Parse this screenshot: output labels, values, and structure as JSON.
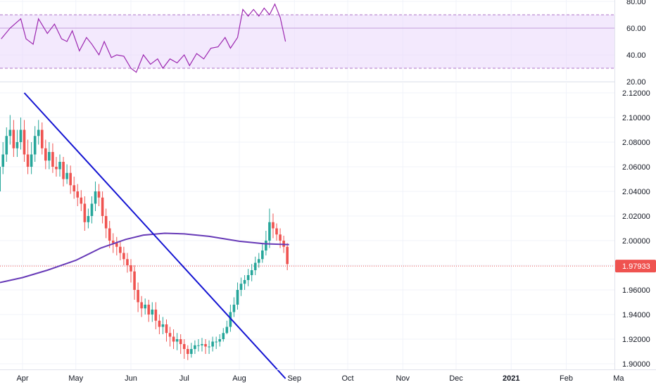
{
  "chart_data": [
    {
      "type": "line",
      "title": "",
      "ylim": [
        20,
        80
      ],
      "grid": true,
      "bands": {
        "upper": 70,
        "middle": 60,
        "lower": 30,
        "fill": "#e9d7fc",
        "line_color": "#7b1fa2"
      },
      "y_ticks": [
        "80.00",
        "60.00",
        "40.00",
        "20.00"
      ],
      "y_tick_values": [
        80,
        60,
        40,
        20
      ],
      "series": [
        {
          "color": "#9c27b0",
          "x": [
            "2020-03-20",
            "2020-03-25",
            "2020-03-31",
            "2020-04-03",
            "2020-04-07",
            "2020-04-10",
            "2020-04-15",
            "2020-04-19",
            "2020-04-23",
            "2020-04-26",
            "2020-04-29",
            "2020-05-03",
            "2020-05-07",
            "2020-05-10",
            "2020-05-14",
            "2020-05-17",
            "2020-05-21",
            "2020-05-24",
            "2020-05-28",
            "2020-06-01",
            "2020-06-04",
            "2020-06-08",
            "2020-06-12",
            "2020-06-16",
            "2020-06-19",
            "2020-06-23",
            "2020-06-27",
            "2020-07-01",
            "2020-07-04",
            "2020-07-08",
            "2020-07-12",
            "2020-07-16",
            "2020-07-20",
            "2020-07-24",
            "2020-07-27",
            "2020-07-31",
            "2020-08-03",
            "2020-08-06",
            "2020-08-09",
            "2020-08-12",
            "2020-08-15",
            "2020-08-18",
            "2020-08-21",
            "2020-08-24",
            "2020-08-27"
          ],
          "values": [
            52,
            60,
            67,
            52,
            48,
            67,
            56,
            63,
            52,
            50,
            58,
            43,
            53,
            48,
            40,
            50,
            38,
            40,
            39,
            30,
            27,
            40,
            33,
            37,
            30,
            37,
            34,
            40,
            32,
            41,
            37,
            45,
            46,
            53,
            45,
            53,
            74,
            69,
            74,
            69,
            75,
            70,
            78,
            68,
            50
          ]
        }
      ]
    },
    {
      "type": "candlestick",
      "title": "",
      "ylim": [
        1.885,
        2.125
      ],
      "grid": true,
      "y_ticks": [
        "2.12000",
        "2.10000",
        "2.08000",
        "2.06000",
        "2.04000",
        "2.02000",
        "2.00000",
        "1.98000",
        "1.96000",
        "1.94000",
        "1.92000",
        "1.90000"
      ],
      "y_tick_values": [
        2.12,
        2.1,
        2.08,
        2.06,
        2.04,
        2.02,
        2.0,
        1.98,
        1.96,
        1.94,
        1.92,
        1.9
      ],
      "x_ticks": [
        "Apr",
        "May",
        "Jun",
        "Jul",
        "Aug",
        "Sep",
        "Oct",
        "Nov",
        "Dec",
        "2021",
        "Feb",
        "Ma"
      ],
      "x_tick_dates": [
        "2020-04-01",
        "2020-05-01",
        "2020-06-01",
        "2020-07-01",
        "2020-08-01",
        "2020-09-01",
        "2020-10-01",
        "2020-11-01",
        "2020-12-01",
        "2021-01-01",
        "2021-02-01",
        "2021-03-01"
      ],
      "last_price": "1.97933",
      "last_price_value": 1.97933,
      "colors": {
        "up": "#26a69a",
        "down": "#ef5350",
        "ma": "#673ab7",
        "trendline": "#1414d2",
        "last_price": "#ef5350"
      },
      "moving_average": {
        "x": [
          "2020-03-15",
          "2020-04-01",
          "2020-04-15",
          "2020-05-01",
          "2020-05-15",
          "2020-05-29",
          "2020-06-08",
          "2020-06-20",
          "2020-07-01",
          "2020-07-15",
          "2020-08-01",
          "2020-08-15",
          "2020-08-29"
        ],
        "values": [
          1.966,
          1.97,
          1.976,
          1.984,
          1.994,
          2.001,
          2.0045,
          2.006,
          2.0055,
          2.0035,
          1.9995,
          1.9975,
          1.9968
        ]
      },
      "trendline": {
        "x": [
          "2020-04-02",
          "2020-08-27"
        ],
        "values": [
          2.12,
          1.888
        ]
      },
      "candles": {
        "x": [
          "2020-03-15",
          "2020-03-17",
          "2020-03-19",
          "2020-03-21",
          "2020-03-23",
          "2020-03-25",
          "2020-03-27",
          "2020-03-29",
          "2020-03-31",
          "2020-04-02",
          "2020-04-04",
          "2020-04-06",
          "2020-04-08",
          "2020-04-10",
          "2020-04-12",
          "2020-04-14",
          "2020-04-16",
          "2020-04-18",
          "2020-04-20",
          "2020-04-22",
          "2020-04-24",
          "2020-04-26",
          "2020-04-28",
          "2020-04-30",
          "2020-05-02",
          "2020-05-04",
          "2020-05-06",
          "2020-05-08",
          "2020-05-10",
          "2020-05-12",
          "2020-05-14",
          "2020-05-16",
          "2020-05-18",
          "2020-05-20",
          "2020-05-22",
          "2020-05-24",
          "2020-05-26",
          "2020-05-28",
          "2020-05-30",
          "2020-06-01",
          "2020-06-03",
          "2020-06-05",
          "2020-06-07",
          "2020-06-09",
          "2020-06-11",
          "2020-06-13",
          "2020-06-15",
          "2020-06-17",
          "2020-06-19",
          "2020-06-21",
          "2020-06-23",
          "2020-06-25",
          "2020-06-27",
          "2020-06-29",
          "2020-07-01",
          "2020-07-03",
          "2020-07-05",
          "2020-07-07",
          "2020-07-09",
          "2020-07-11",
          "2020-07-13",
          "2020-07-15",
          "2020-07-17",
          "2020-07-19",
          "2020-07-21",
          "2020-07-23",
          "2020-07-25",
          "2020-07-27",
          "2020-07-29",
          "2020-07-31",
          "2020-08-02",
          "2020-08-04",
          "2020-08-06",
          "2020-08-08",
          "2020-08-10",
          "2020-08-12",
          "2020-08-14",
          "2020-08-16",
          "2020-08-18",
          "2020-08-20",
          "2020-08-22",
          "2020-08-24",
          "2020-08-26",
          "2020-08-28"
        ],
        "open": [
          2.0,
          2.02,
          2.04,
          2.06,
          2.07,
          2.085,
          2.09,
          2.075,
          2.08,
          2.09,
          2.07,
          2.06,
          2.07,
          2.085,
          2.09,
          2.075,
          2.065,
          2.072,
          2.06,
          2.058,
          2.064,
          2.05,
          2.055,
          2.045,
          2.04,
          2.035,
          2.03,
          2.015,
          2.02,
          2.03,
          2.04,
          2.035,
          2.02,
          2.01,
          2.0,
          1.998,
          1.995,
          1.99,
          1.985,
          1.98,
          1.975,
          1.96,
          1.95,
          1.945,
          1.948,
          1.94,
          1.944,
          1.935,
          1.93,
          1.932,
          1.925,
          1.922,
          1.918,
          1.92,
          1.916,
          1.912,
          1.908,
          1.912,
          1.915,
          1.915,
          1.916,
          1.914,
          1.914,
          1.918,
          1.918,
          1.92,
          1.925,
          1.93,
          1.942,
          1.948,
          1.96,
          1.965,
          1.968,
          1.972,
          1.976,
          1.982,
          1.985,
          1.992,
          2.0,
          2.015,
          2.01,
          2.005,
          2.0,
          1.995
        ],
        "close": [
          2.02,
          2.04,
          2.06,
          2.07,
          2.085,
          2.09,
          2.075,
          2.08,
          2.09,
          2.07,
          2.06,
          2.07,
          2.085,
          2.09,
          2.075,
          2.065,
          2.072,
          2.06,
          2.058,
          2.064,
          2.05,
          2.055,
          2.045,
          2.04,
          2.035,
          2.03,
          2.015,
          2.02,
          2.03,
          2.04,
          2.035,
          2.02,
          2.01,
          2.0,
          1.998,
          1.995,
          1.99,
          1.985,
          1.98,
          1.975,
          1.96,
          1.95,
          1.945,
          1.948,
          1.94,
          1.944,
          1.935,
          1.93,
          1.932,
          1.925,
          1.922,
          1.918,
          1.92,
          1.916,
          1.912,
          1.908,
          1.912,
          1.915,
          1.915,
          1.916,
          1.914,
          1.914,
          1.918,
          1.918,
          1.92,
          1.925,
          1.93,
          1.942,
          1.948,
          1.96,
          1.965,
          1.968,
          1.972,
          1.976,
          1.982,
          1.985,
          1.992,
          2.0,
          2.015,
          2.01,
          2.005,
          2.0,
          1.995,
          1.981
        ],
        "high": [
          2.026,
          2.048,
          2.068,
          2.08,
          2.092,
          2.102,
          2.098,
          2.09,
          2.1,
          2.098,
          2.082,
          2.08,
          2.093,
          2.098,
          2.096,
          2.082,
          2.08,
          2.079,
          2.068,
          2.07,
          2.068,
          2.062,
          2.061,
          2.052,
          2.046,
          2.041,
          2.036,
          2.026,
          2.036,
          2.048,
          2.046,
          2.04,
          2.026,
          2.016,
          2.006,
          2.003,
          2.0,
          1.995,
          1.99,
          1.985,
          1.98,
          1.966,
          1.955,
          1.953,
          1.952,
          1.95,
          1.95,
          1.94,
          1.938,
          1.936,
          1.93,
          1.928,
          1.925,
          1.924,
          1.92,
          1.915,
          1.917,
          1.919,
          1.92,
          1.921,
          1.92,
          1.919,
          1.922,
          1.922,
          1.924,
          1.929,
          1.935,
          1.948,
          1.954,
          1.966,
          1.97,
          1.972,
          1.977,
          1.981,
          1.987,
          1.99,
          1.998,
          2.008,
          2.026,
          2.022,
          2.014,
          2.01,
          2.004,
          1.998
        ],
        "low": [
          1.988,
          2.012,
          2.032,
          2.054,
          2.064,
          2.078,
          2.068,
          2.068,
          2.074,
          2.064,
          2.054,
          2.054,
          2.064,
          2.078,
          2.07,
          2.058,
          2.058,
          2.055,
          2.052,
          2.052,
          2.044,
          2.046,
          2.038,
          2.034,
          2.028,
          2.024,
          2.008,
          2.01,
          2.014,
          2.024,
          2.028,
          2.014,
          2.002,
          1.994,
          1.99,
          1.988,
          1.984,
          1.98,
          1.974,
          1.966,
          1.952,
          1.942,
          1.938,
          1.94,
          1.934,
          1.934,
          1.928,
          1.924,
          1.924,
          1.918,
          1.914,
          1.912,
          1.911,
          1.908,
          1.904,
          1.903,
          1.905,
          1.908,
          1.91,
          1.91,
          1.908,
          1.908,
          1.91,
          1.912,
          1.914,
          1.918,
          1.924,
          1.926,
          1.938,
          1.944,
          1.955,
          1.96,
          1.963,
          1.967,
          1.972,
          1.978,
          1.982,
          1.988,
          1.994,
          2.002,
          2.0,
          1.994,
          1.99,
          1.976
        ]
      }
    }
  ]
}
